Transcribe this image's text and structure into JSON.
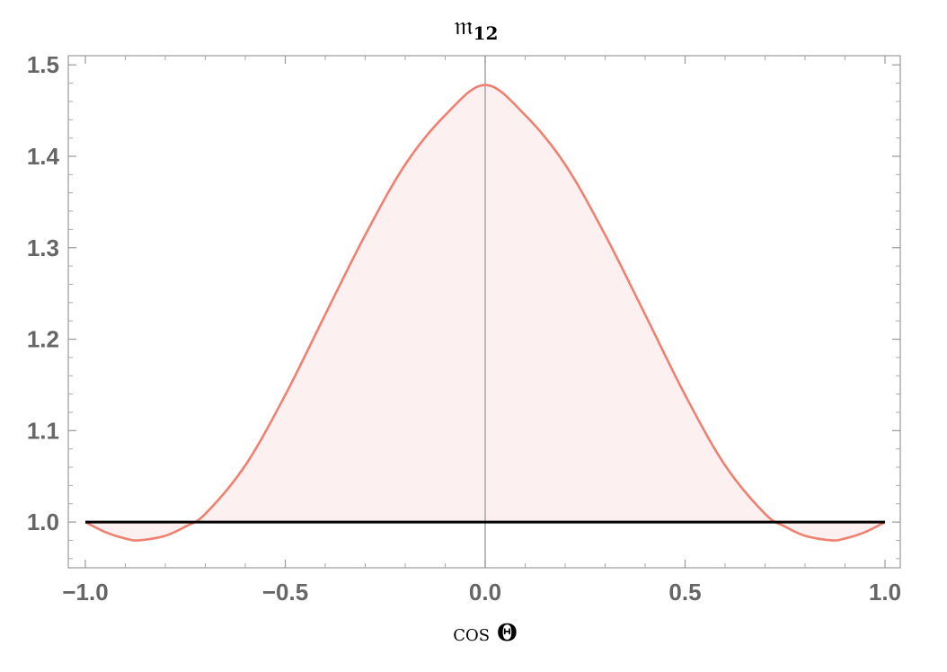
{
  "chart_data": {
    "type": "line",
    "title": "𝔪",
    "title_subscript": "12",
    "xlabel": "cos",
    "xlabel_symbol": "Θ",
    "ylabel": "",
    "xlim": [
      -1.0,
      1.0
    ],
    "ylim": [
      0.95,
      1.51
    ],
    "x_ticks": [
      -1.0,
      -0.5,
      0.0,
      0.5,
      1.0
    ],
    "x_tick_labels": [
      "−1.0",
      "−0.5",
      "0.0",
      "0.5",
      "1.0"
    ],
    "y_ticks": [
      1.0,
      1.1,
      1.2,
      1.3,
      1.4,
      1.5
    ],
    "y_tick_labels": [
      "1.0",
      "1.1",
      "1.2",
      "1.3",
      "1.4",
      "1.5"
    ],
    "grid": false,
    "legend": "none",
    "series": [
      {
        "color": "#f08070",
        "fill_color": "#fdf0f0",
        "fill_to": 1.0,
        "x": [
          -1.0,
          -0.95,
          -0.9,
          -0.866,
          -0.8,
          -0.75,
          -0.7,
          -0.6,
          -0.5,
          -0.4,
          -0.3,
          -0.2,
          -0.1,
          0.0,
          0.1,
          0.2,
          0.3,
          0.4,
          0.5,
          0.6,
          0.7,
          0.75,
          0.8,
          0.866,
          0.9,
          0.95,
          1.0
        ],
        "y": [
          1.0,
          0.989,
          0.982,
          0.98,
          0.985,
          0.995,
          1.009,
          1.062,
          1.139,
          1.227,
          1.314,
          1.391,
          1.445,
          1.478,
          1.445,
          1.391,
          1.314,
          1.227,
          1.139,
          1.062,
          1.009,
          0.995,
          0.985,
          0.98,
          0.982,
          0.989,
          1.0
        ]
      },
      {
        "color": "#000000",
        "x": [
          -1.0,
          1.0
        ],
        "y": [
          1.0,
          1.0
        ]
      }
    ],
    "axis_line_x": 0.0
  }
}
